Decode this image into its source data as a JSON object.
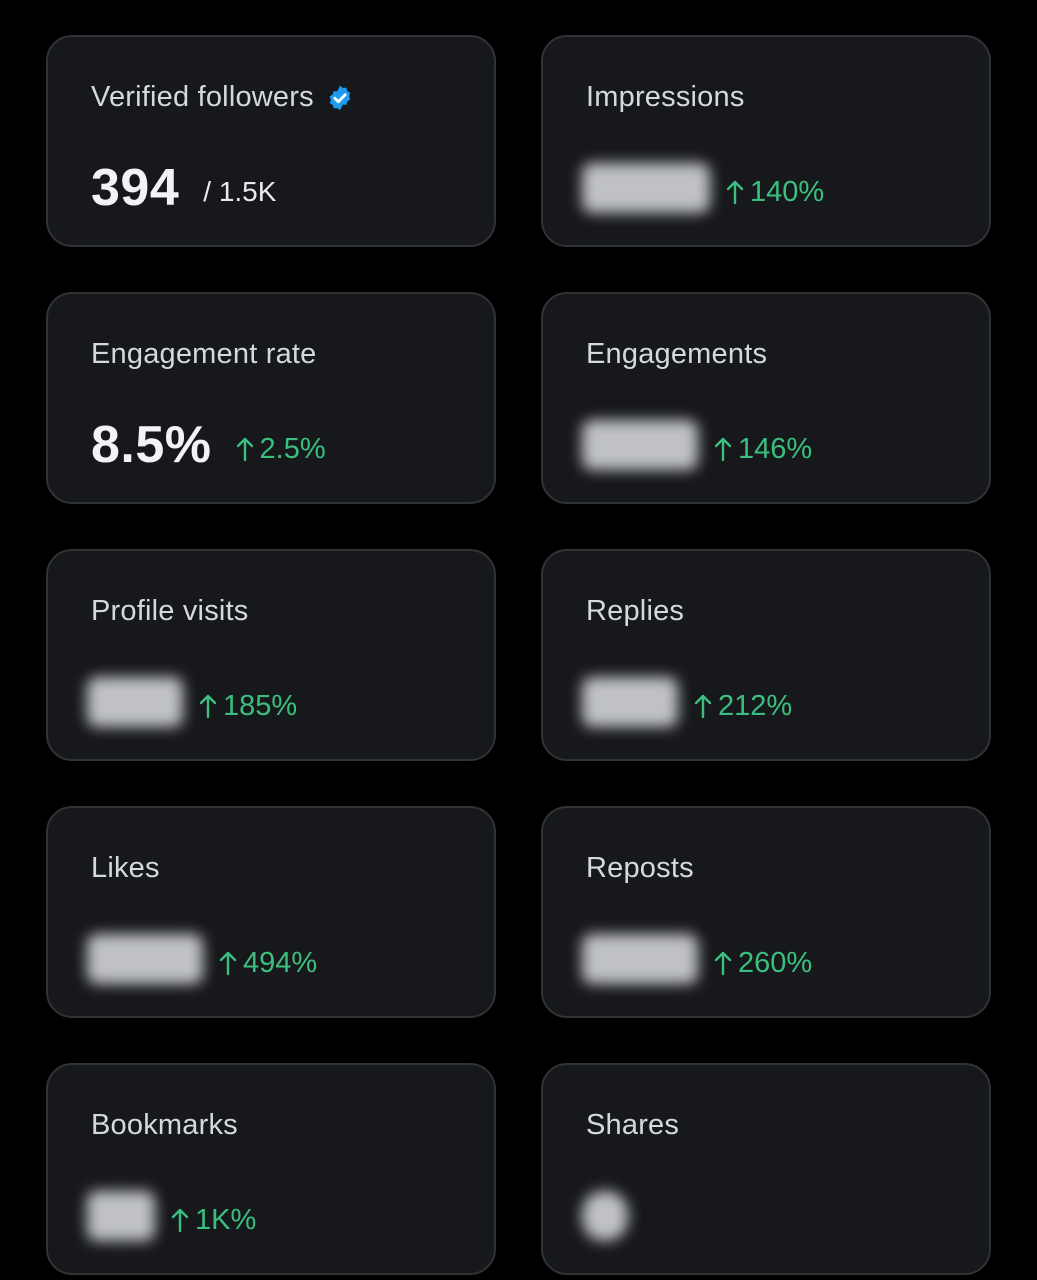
{
  "colors": {
    "background": "#000000",
    "card": "#16181c",
    "card_border": "#2f3336",
    "trend_up": "#3bbf7e",
    "verified_badge": "#1d9bf0"
  },
  "cards": [
    {
      "title": "Verified followers",
      "value": "394",
      "sub_value": "/ 1.5K",
      "badge_icon": "verified-badge-icon"
    },
    {
      "title": "Impressions",
      "value_hidden": true,
      "trend": "140%",
      "trend_icon": "arrow-up-icon"
    },
    {
      "title": "Engagement rate",
      "value": "8.5%",
      "trend": "2.5%",
      "trend_icon": "arrow-up-icon"
    },
    {
      "title": "Engagements",
      "value_hidden": true,
      "trend": "146%",
      "trend_icon": "arrow-up-icon"
    },
    {
      "title": "Profile visits",
      "value_hidden": true,
      "trend": "185%",
      "trend_icon": "arrow-up-icon"
    },
    {
      "title": "Replies",
      "value_hidden": true,
      "trend": "212%",
      "trend_icon": "arrow-up-icon"
    },
    {
      "title": "Likes",
      "value_hidden": true,
      "trend": "494%",
      "trend_icon": "arrow-up-icon"
    },
    {
      "title": "Reposts",
      "value_hidden": true,
      "trend": "260%",
      "trend_icon": "arrow-up-icon"
    },
    {
      "title": "Bookmarks",
      "value_hidden": true,
      "trend": "1K%",
      "trend_icon": "arrow-up-icon"
    },
    {
      "title": "Shares",
      "value_hidden": true
    }
  ]
}
